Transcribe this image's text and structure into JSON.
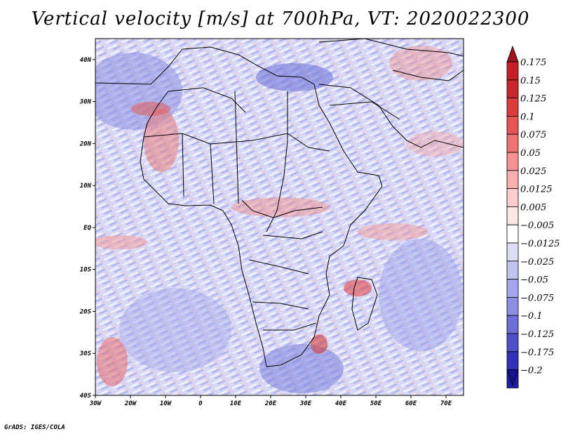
{
  "title": "Vertical velocity [m/s] at 700hPa, VT: 2020022300",
  "credit": "GrADS: IGES/COLA",
  "map": {
    "lon_range": [
      -30,
      75
    ],
    "lat_range": [
      -40,
      45
    ],
    "lat_ticks": [
      {
        "value": 40,
        "label": "40N"
      },
      {
        "value": 30,
        "label": "30N"
      },
      {
        "value": 20,
        "label": "20N"
      },
      {
        "value": 10,
        "label": "10N"
      },
      {
        "value": 0,
        "label": "EQ"
      },
      {
        "value": -10,
        "label": "10S"
      },
      {
        "value": -20,
        "label": "20S"
      },
      {
        "value": -30,
        "label": "30S"
      },
      {
        "value": -40,
        "label": "40S"
      }
    ],
    "lon_ticks": [
      {
        "value": -30,
        "label": "30W"
      },
      {
        "value": -20,
        "label": "20W"
      },
      {
        "value": -10,
        "label": "10W"
      },
      {
        "value": 0,
        "label": "0"
      },
      {
        "value": 10,
        "label": "10E"
      },
      {
        "value": 20,
        "label": "20E"
      },
      {
        "value": 30,
        "label": "30E"
      },
      {
        "value": 40,
        "label": "40E"
      },
      {
        "value": 50,
        "label": "50E"
      },
      {
        "value": 60,
        "label": "60E"
      },
      {
        "value": 70,
        "label": "70E"
      }
    ]
  },
  "colorbar": {
    "levels": [
      {
        "label": "0.175",
        "color": "#b4141e"
      },
      {
        "label": "0.15",
        "color": "#c8282d"
      },
      {
        "label": "0.125",
        "color": "#dc3c3c"
      },
      {
        "label": "0.1",
        "color": "#e65555"
      },
      {
        "label": "0.075",
        "color": "#ee7373"
      },
      {
        "label": "0.05",
        "color": "#f59191"
      },
      {
        "label": "0.025",
        "color": "#f9afaf"
      },
      {
        "label": "0.0125",
        "color": "#fccdcd"
      },
      {
        "label": "0.005",
        "color": "#fde6e6"
      },
      {
        "label": "−0.005",
        "color": "#ffffff"
      },
      {
        "label": "−0.0125",
        "color": "#dcdcf5"
      },
      {
        "label": "−0.025",
        "color": "#c3c3f0"
      },
      {
        "label": "−0.05",
        "color": "#a5a5eb"
      },
      {
        "label": "−0.075",
        "color": "#8c8ce1"
      },
      {
        "label": "−0.1",
        "color": "#6e6ed7"
      },
      {
        "label": "−0.125",
        "color": "#5050c8"
      },
      {
        "label": "−0.175",
        "color": "#3232b9"
      },
      {
        "label": "−0.2",
        "color": "#1e1ea5"
      }
    ],
    "top_color": "#a0141e",
    "bottom_color": "#14148c",
    "extra_top_color": "#c81e28"
  }
}
